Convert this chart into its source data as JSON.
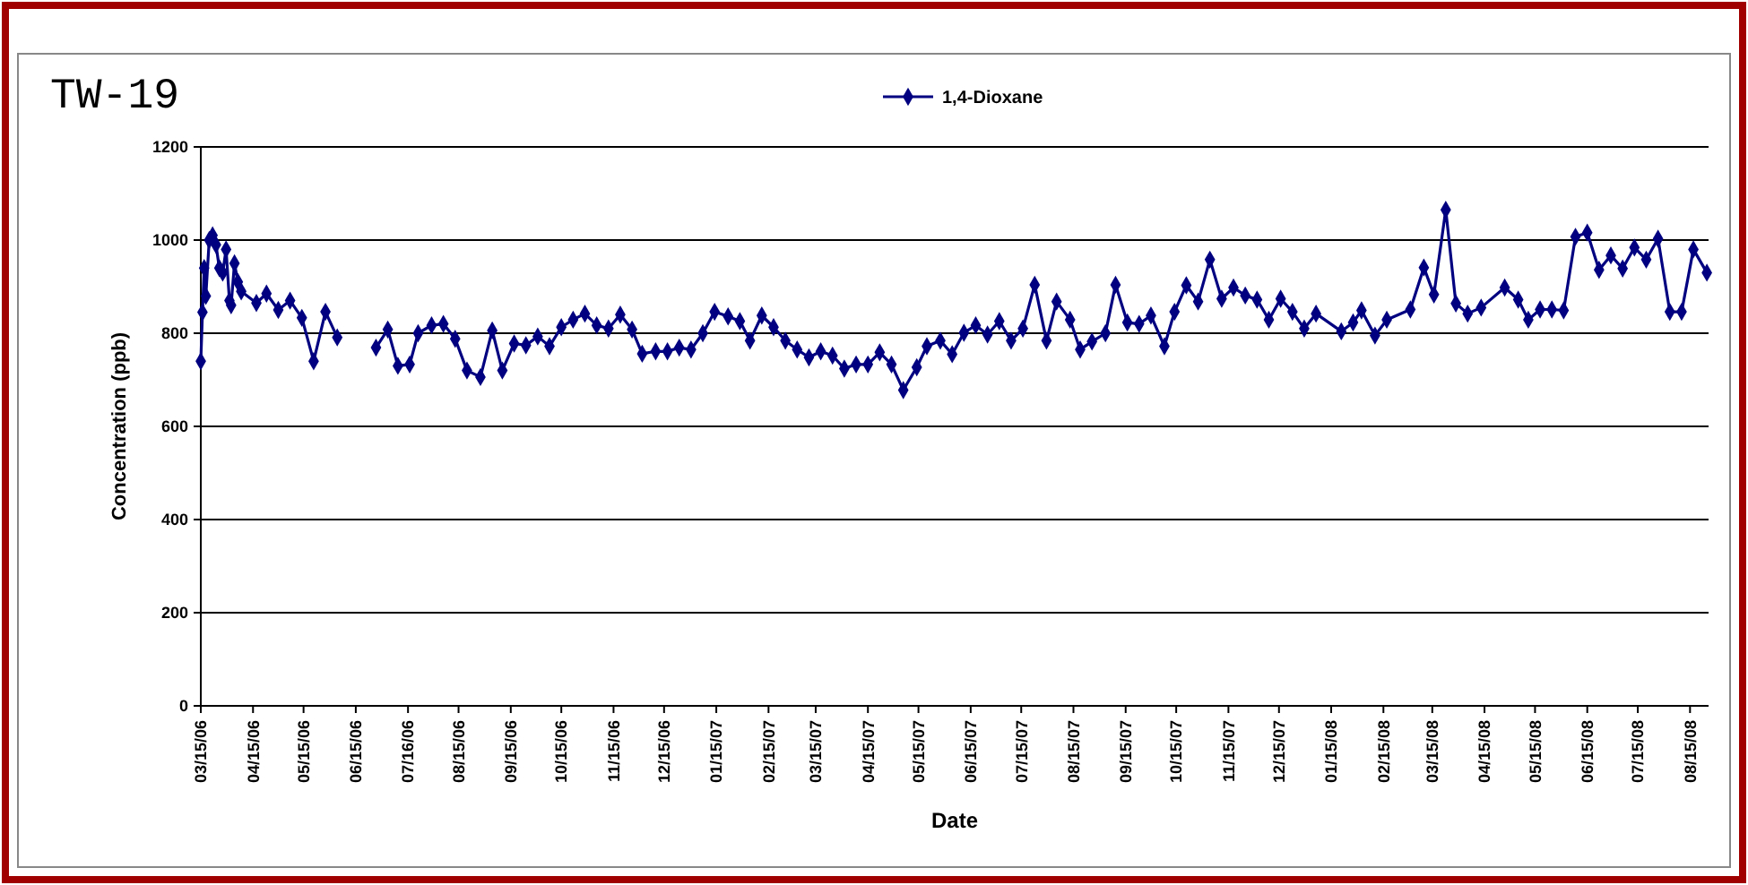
{
  "chart_data": {
    "type": "line",
    "title": "TW-19",
    "xlabel": "Date",
    "ylabel": "Concentration (ppb)",
    "x": [
      "2006-03-15",
      "2006-03-16",
      "2006-03-17",
      "2006-03-18",
      "2006-03-20",
      "2006-03-22",
      "2006-03-24",
      "2006-03-26",
      "2006-03-28",
      "2006-03-30",
      "2006-04-01",
      "2006-04-02",
      "2006-04-04",
      "2006-04-06",
      "2006-04-08",
      "2006-04-17",
      "2006-04-23",
      "2006-04-30",
      "2006-05-07",
      "2006-05-14",
      "2006-05-21",
      "2006-05-28",
      "2006-06-04",
      "2006-06-15",
      "2006-06-27",
      "2006-07-04",
      "2006-07-10",
      "2006-07-17",
      "2006-07-22",
      "2006-07-30",
      "2006-08-06",
      "2006-08-13",
      "2006-08-20",
      "2006-08-28",
      "2006-09-04",
      "2006-09-10",
      "2006-09-17",
      "2006-09-24",
      "2006-10-01",
      "2006-10-08",
      "2006-10-15",
      "2006-10-22",
      "2006-10-29",
      "2006-11-05",
      "2006-11-12",
      "2006-11-19",
      "2006-11-26",
      "2006-12-02",
      "2006-12-10",
      "2006-12-17",
      "2006-12-24",
      "2006-12-31",
      "2007-01-07",
      "2007-01-14",
      "2007-01-22",
      "2007-01-29",
      "2007-02-04",
      "2007-02-11",
      "2007-02-18",
      "2007-02-25",
      "2007-03-04",
      "2007-03-11",
      "2007-03-18",
      "2007-03-25",
      "2007-04-01",
      "2007-04-08",
      "2007-04-15",
      "2007-04-22",
      "2007-04-29",
      "2007-05-06",
      "2007-05-14",
      "2007-05-20",
      "2007-05-28",
      "2007-06-04",
      "2007-06-11",
      "2007-06-18",
      "2007-06-25",
      "2007-07-02",
      "2007-07-09",
      "2007-07-16",
      "2007-07-23",
      "2007-07-30",
      "2007-08-05",
      "2007-08-13",
      "2007-08-19",
      "2007-08-26",
      "2007-09-03",
      "2007-09-09",
      "2007-09-16",
      "2007-09-23",
      "2007-09-30",
      "2007-10-08",
      "2007-10-14",
      "2007-10-21",
      "2007-10-28",
      "2007-11-04",
      "2007-11-11",
      "2007-11-18",
      "2007-11-25",
      "2007-12-02",
      "2007-12-09",
      "2007-12-16",
      "2007-12-23",
      "2007-12-30",
      "2008-01-06",
      "2008-01-21",
      "2008-01-28",
      "2008-02-02",
      "2008-02-10",
      "2008-02-17",
      "2008-03-02",
      "2008-03-10",
      "2008-03-16",
      "2008-03-23",
      "2008-03-29",
      "2008-04-05",
      "2008-04-13",
      "2008-04-27",
      "2008-05-05",
      "2008-05-11",
      "2008-05-18",
      "2008-05-25",
      "2008-06-01",
      "2008-06-08",
      "2008-06-15",
      "2008-06-22",
      "2008-06-29",
      "2008-07-06",
      "2008-07-13",
      "2008-07-20",
      "2008-07-27",
      "2008-08-03",
      "2008-08-10",
      "2008-08-17",
      "2008-08-25"
    ],
    "series": [
      {
        "name": "1,4-Dioxane",
        "color": "#000080",
        "values": [
          740,
          845,
          940,
          880,
          1000,
          1010,
          990,
          940,
          930,
          980,
          870,
          860,
          950,
          910,
          890,
          865,
          885,
          850,
          870,
          833,
          740,
          846,
          791,
          null,
          769,
          808,
          730,
          733,
          800,
          817,
          820,
          788,
          720,
          706,
          806,
          720,
          778,
          774,
          793,
          772,
          813,
          829,
          842,
          817,
          810,
          840,
          808,
          756,
          761,
          761,
          769,
          765,
          800,
          846,
          836,
          826,
          784,
          838,
          813,
          784,
          765,
          748,
          761,
          752,
          724,
          733,
          733,
          759,
          733,
          678,
          727,
          772,
          784,
          755,
          801,
          817,
          797,
          826,
          784,
          810,
          904,
          784,
          868,
          829,
          765,
          782,
          800,
          904,
          823,
          820,
          838,
          772,
          846,
          903,
          868,
          958,
          874,
          898,
          881,
          872,
          829,
          874,
          846,
          810,
          842,
          804,
          823,
          849,
          795,
          829,
          851,
          941,
          883,
          1065,
          864,
          842,
          855,
          898,
          872,
          829,
          851,
          851,
          849,
          1007,
          1016,
          936,
          967,
          939,
          984,
          958,
          1003,
          846,
          846,
          980,
          930
        ]
      }
    ],
    "xlim": [
      "2006-03-15",
      "2008-08-26"
    ],
    "xticks": [
      {
        "value": "2006-03-15",
        "label": "03/15/06"
      },
      {
        "value": "2006-04-15",
        "label": "04/15/06"
      },
      {
        "value": "2006-05-15",
        "label": "05/15/06"
      },
      {
        "value": "2006-06-15",
        "label": "06/15/06"
      },
      {
        "value": "2006-07-16",
        "label": "07/16/06"
      },
      {
        "value": "2006-08-15",
        "label": "08/15/06"
      },
      {
        "value": "2006-09-15",
        "label": "09/15/06"
      },
      {
        "value": "2006-10-15",
        "label": "10/15/06"
      },
      {
        "value": "2006-11-15",
        "label": "11/15/06"
      },
      {
        "value": "2006-12-15",
        "label": "12/15/06"
      },
      {
        "value": "2007-01-15",
        "label": "01/15/07"
      },
      {
        "value": "2007-02-15",
        "label": "02/15/07"
      },
      {
        "value": "2007-03-15",
        "label": "03/15/07"
      },
      {
        "value": "2007-04-15",
        "label": "04/15/07"
      },
      {
        "value": "2007-05-15",
        "label": "05/15/07"
      },
      {
        "value": "2007-06-15",
        "label": "06/15/07"
      },
      {
        "value": "2007-07-15",
        "label": "07/15/07"
      },
      {
        "value": "2007-08-15",
        "label": "08/15/07"
      },
      {
        "value": "2007-09-15",
        "label": "09/15/07"
      },
      {
        "value": "2007-10-15",
        "label": "10/15/07"
      },
      {
        "value": "2007-11-15",
        "label": "11/15/07"
      },
      {
        "value": "2007-12-15",
        "label": "12/15/07"
      },
      {
        "value": "2008-01-15",
        "label": "01/15/08"
      },
      {
        "value": "2008-02-15",
        "label": "02/15/08"
      },
      {
        "value": "2008-03-15",
        "label": "03/15/08"
      },
      {
        "value": "2008-04-15",
        "label": "04/15/08"
      },
      {
        "value": "2008-05-15",
        "label": "05/15/08"
      },
      {
        "value": "2008-06-15",
        "label": "06/15/08"
      },
      {
        "value": "2008-07-15",
        "label": "07/15/08"
      },
      {
        "value": "2008-08-15",
        "label": "08/15/08"
      }
    ],
    "ylim": [
      0,
      1200
    ],
    "yticks": [
      0,
      200,
      400,
      600,
      800,
      1000,
      1200
    ],
    "grid": "y",
    "legend": "top",
    "marker": "diamond",
    "line_style": "solid"
  }
}
